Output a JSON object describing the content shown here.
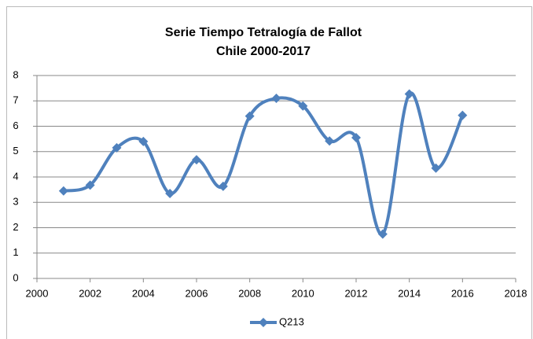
{
  "chart_data": {
    "type": "line",
    "title": "Serie Tiempo Tetralogía de Fallot",
    "subtitle": "Chile 2000-2017",
    "x": [
      2001,
      2002,
      2003,
      2004,
      2005,
      2006,
      2007,
      2008,
      2009,
      2010,
      2011,
      2012,
      2013,
      2014,
      2015,
      2016
    ],
    "series": [
      {
        "name": "Q213",
        "color": "#4f81bd",
        "values": [
          3.45,
          3.68,
          5.15,
          5.4,
          3.35,
          4.68,
          3.63,
          6.4,
          7.1,
          6.8,
          5.42,
          5.55,
          1.75,
          7.27,
          4.35,
          6.43
        ]
      }
    ],
    "xlim": [
      2000,
      2018
    ],
    "xticks": [
      2000,
      2002,
      2004,
      2006,
      2008,
      2010,
      2012,
      2014,
      2016,
      2018
    ],
    "ylim": [
      0,
      8
    ],
    "yticks": [
      0,
      1,
      2,
      3,
      4,
      5,
      6,
      7,
      8
    ],
    "grid": true,
    "smooth": true,
    "legend": "bottom"
  }
}
